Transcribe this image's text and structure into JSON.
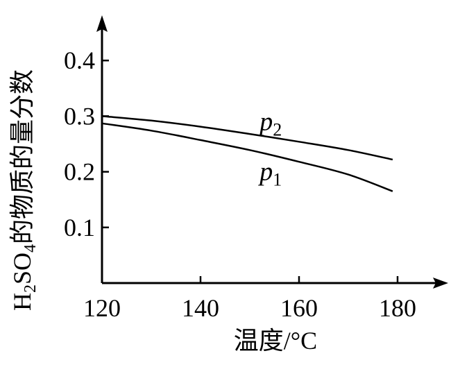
{
  "chart_data": {
    "type": "line",
    "xlabel": "温度/°C",
    "ylabel_parts": {
      "h": "H",
      "h_sub": "2",
      "so": "SO",
      "so_sub": "4",
      "rest": "的物质的量分数"
    },
    "xlim": [
      120,
      190
    ],
    "ylim": [
      0,
      0.46
    ],
    "x_ticks": [
      {
        "value": 120,
        "label": "120"
      },
      {
        "value": 140,
        "label": "140"
      },
      {
        "value": 160,
        "label": "160"
      },
      {
        "value": 180,
        "label": "180"
      }
    ],
    "y_ticks": [
      {
        "value": 0.1,
        "label": "0.1"
      },
      {
        "value": 0.2,
        "label": "0.2"
      },
      {
        "value": 0.3,
        "label": "0.3"
      },
      {
        "value": 0.4,
        "label": "0.4"
      }
    ],
    "series": [
      {
        "name": "p2",
        "label_main": "p",
        "label_sub": "2",
        "label_at": [
          152,
          0.275
        ],
        "points": [
          [
            120,
            0.3
          ],
          [
            130,
            0.292
          ],
          [
            140,
            0.281
          ],
          [
            150,
            0.268
          ],
          [
            160,
            0.254
          ],
          [
            170,
            0.239
          ],
          [
            179,
            0.222
          ]
        ]
      },
      {
        "name": "p1",
        "label_main": "p",
        "label_sub": "1",
        "label_at": [
          152,
          0.185
        ],
        "points": [
          [
            120,
            0.287
          ],
          [
            130,
            0.274
          ],
          [
            140,
            0.257
          ],
          [
            150,
            0.239
          ],
          [
            160,
            0.218
          ],
          [
            170,
            0.195
          ],
          [
            179,
            0.165
          ]
        ]
      }
    ],
    "grid": false,
    "legend": "none"
  }
}
